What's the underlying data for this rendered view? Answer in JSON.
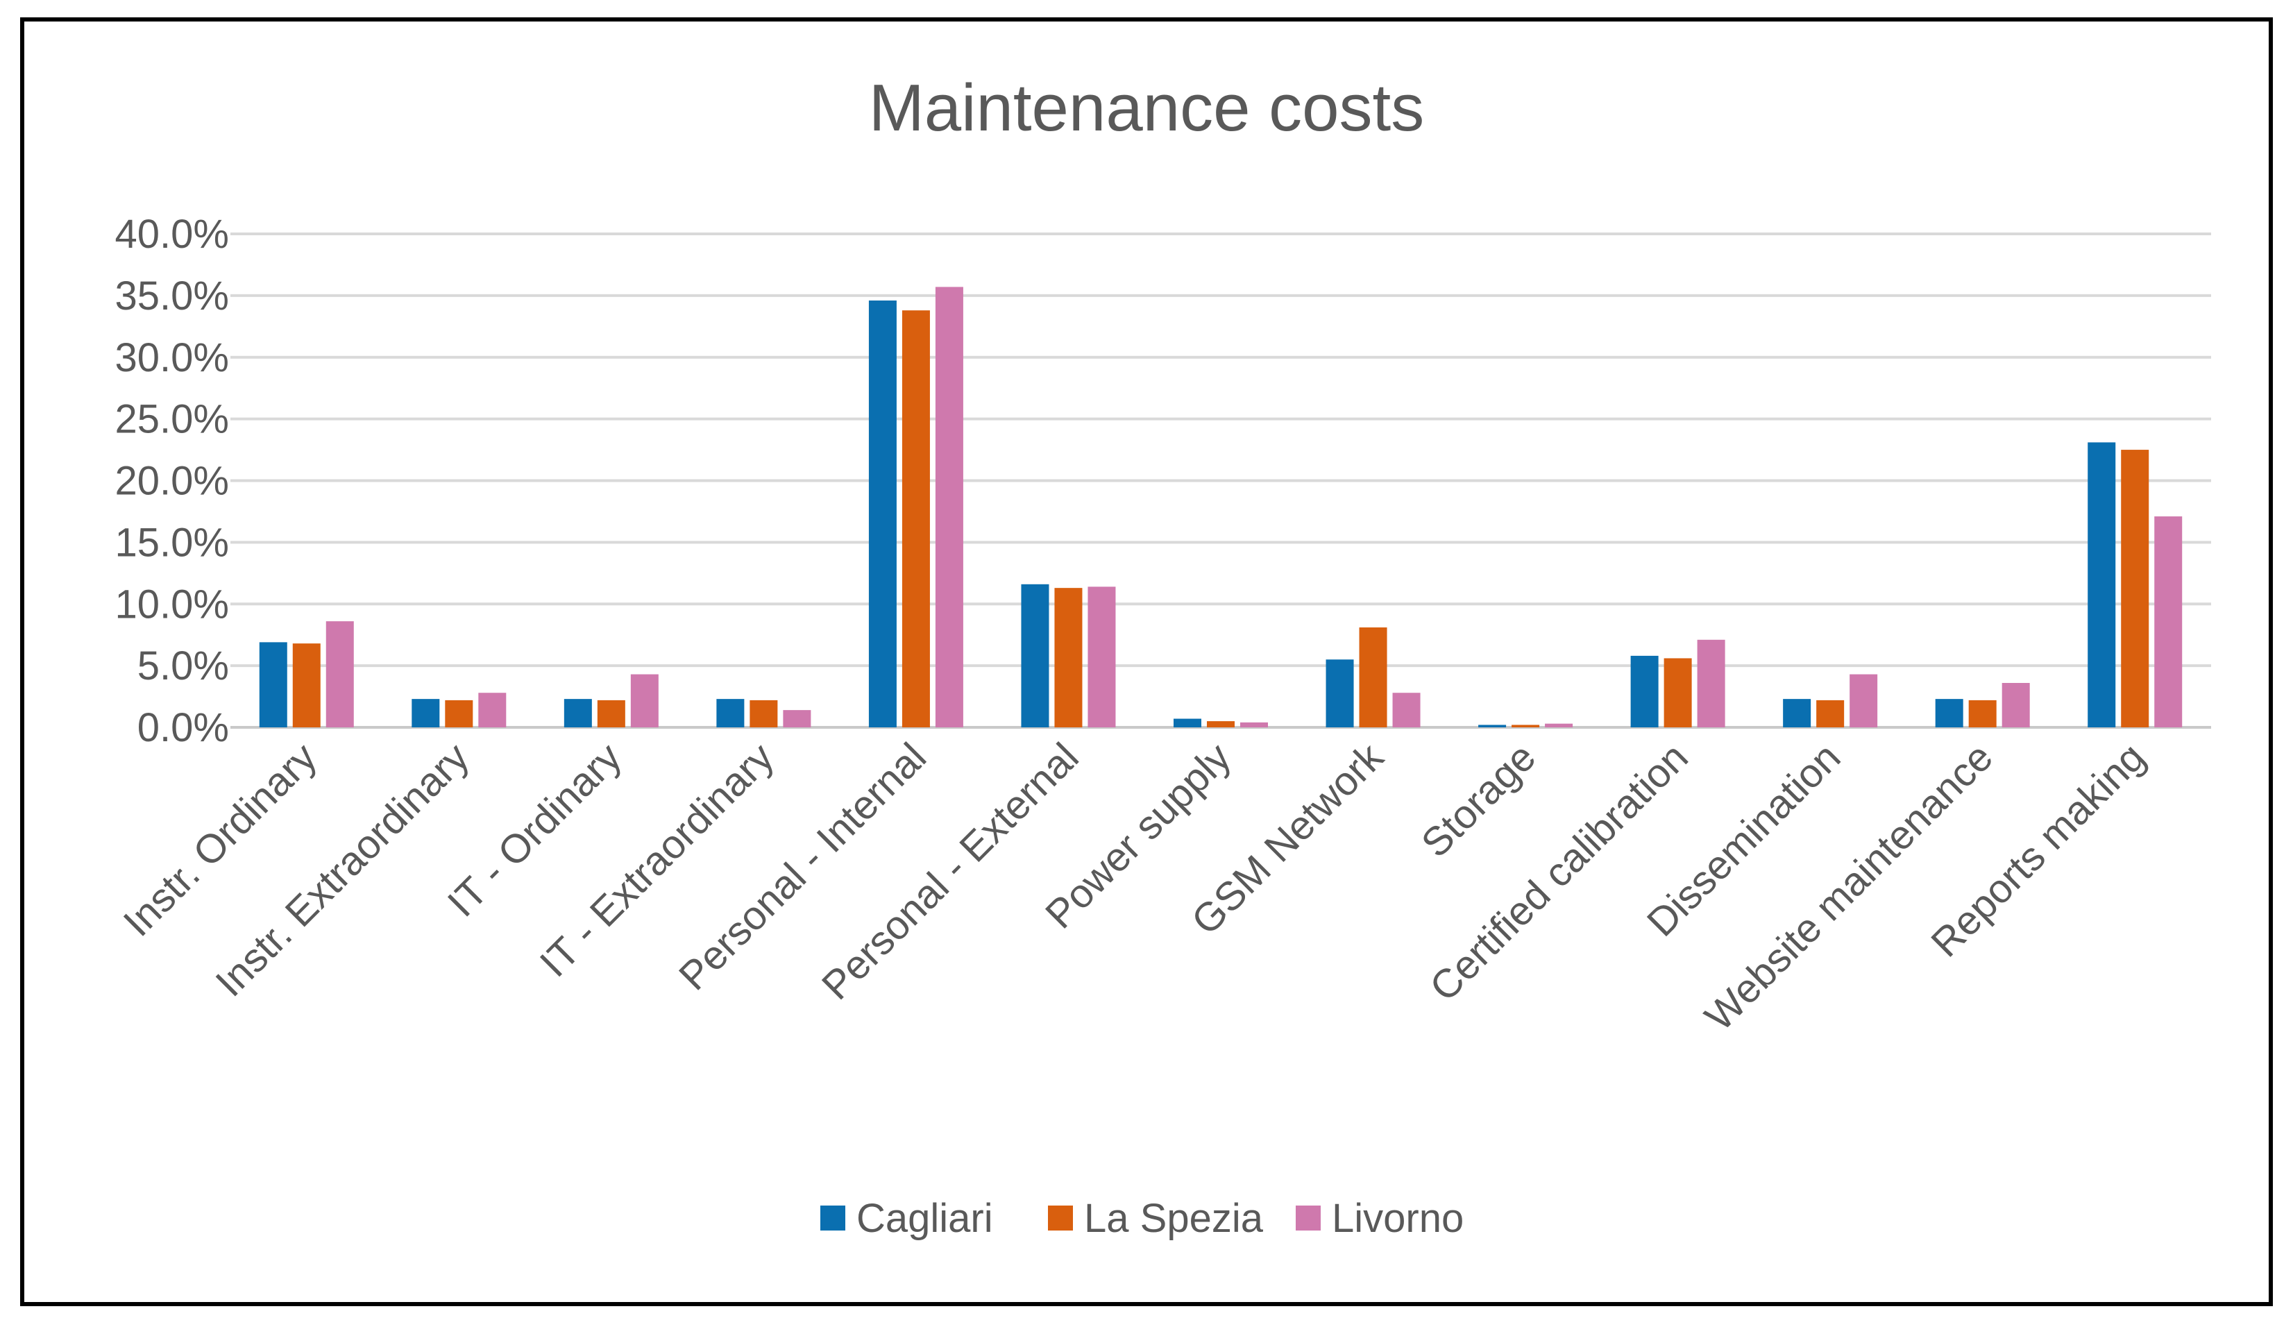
{
  "chart_data": {
    "type": "bar",
    "title": "Maintenance costs",
    "xlabel": "",
    "ylabel": "",
    "ylim": [
      0,
      40
    ],
    "yticks": [
      0,
      5,
      10,
      15,
      20,
      25,
      30,
      35,
      40
    ],
    "ytick_labels": [
      "0.0%",
      "5.0%",
      "10.0%",
      "15.0%",
      "20.0%",
      "25.0%",
      "30.0%",
      "35.0%",
      "40.0%"
    ],
    "grid": true,
    "legend_position": "bottom",
    "categories": [
      "Instr. Ordinary",
      "Instr. Extraordinary",
      "IT - Ordinary",
      "IT - Extraordinary",
      "Personal - Internal",
      "Personal - External",
      "Power supply",
      "GSM Network",
      "Storage",
      "Certified calibration",
      "Dissemination",
      "Website maintenance",
      "Reports making"
    ],
    "series": [
      {
        "name": "Cagliari",
        "color": "#0a6fb0",
        "values": [
          6.9,
          2.3,
          2.3,
          2.3,
          34.6,
          11.6,
          0.7,
          5.5,
          0.2,
          5.8,
          2.3,
          2.3,
          23.1
        ]
      },
      {
        "name": "La Spezia",
        "color": "#d95f0e",
        "values": [
          6.8,
          2.2,
          2.2,
          2.2,
          33.8,
          11.3,
          0.5,
          8.1,
          0.2,
          5.6,
          2.2,
          2.2,
          22.5
        ]
      },
      {
        "name": "Livorno",
        "color": "#cf79ad",
        "values": [
          8.6,
          2.8,
          4.3,
          1.4,
          35.7,
          11.4,
          0.4,
          2.8,
          0.3,
          7.1,
          4.3,
          3.6,
          17.1
        ]
      }
    ]
  }
}
